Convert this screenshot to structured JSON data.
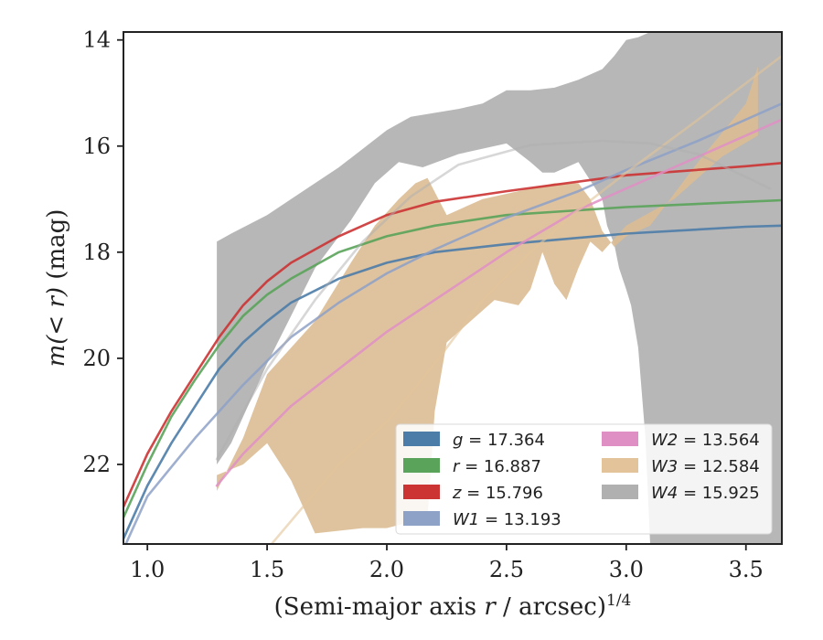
{
  "chart_data": {
    "type": "line",
    "title": "",
    "xlabel": "(Semi-major axis r / arcsec)1/4",
    "xlabel_parts": {
      "main": "(Semi-major axis ",
      "var": "r",
      "rest": " / arcsec)",
      "sup": "1/4"
    },
    "ylabel": "m(< r) (mag)",
    "ylabel_parts": {
      "main": "m(< r)",
      "unit": " (mag)"
    },
    "xlim": [
      0.9,
      3.65
    ],
    "ylim": [
      23.5,
      13.85
    ],
    "y_inverted": true,
    "xticks": [
      1.0,
      1.5,
      2.0,
      2.5,
      3.0,
      3.5
    ],
    "xtick_labels": [
      "1.0",
      "1.5",
      "2.0",
      "2.5",
      "3.0",
      "3.5"
    ],
    "yticks": [
      14,
      16,
      18,
      20,
      22
    ],
    "ytick_labels": [
      "14",
      "16",
      "18",
      "20",
      "22"
    ],
    "grid": false,
    "legend_placement": "lower-right",
    "series": [
      {
        "name": "g = 17.364",
        "var": "g",
        "val": "17.364",
        "color": "#4c7ca8",
        "alpha": 0.9,
        "x": [
          0.9,
          1.0,
          1.1,
          1.2,
          1.3,
          1.4,
          1.5,
          1.6,
          1.8,
          2.0,
          2.2,
          2.5,
          3.0,
          3.5,
          3.65
        ],
        "y": [
          23.4,
          22.4,
          21.6,
          20.9,
          20.2,
          19.7,
          19.3,
          18.95,
          18.5,
          18.2,
          18.0,
          17.85,
          17.65,
          17.52,
          17.5
        ]
      },
      {
        "name": "r = 16.887",
        "var": "r",
        "val": "16.887",
        "color": "#5aa35a",
        "alpha": 0.9,
        "x": [
          0.9,
          1.0,
          1.1,
          1.2,
          1.3,
          1.4,
          1.5,
          1.6,
          1.8,
          2.0,
          2.2,
          2.5,
          3.0,
          3.5,
          3.65
        ],
        "y": [
          23.0,
          22.0,
          21.1,
          20.4,
          19.75,
          19.2,
          18.8,
          18.5,
          18.0,
          17.7,
          17.5,
          17.3,
          17.15,
          17.05,
          17.02
        ]
      },
      {
        "name": "z = 15.796",
        "var": "z",
        "val": "15.796",
        "color": "#cc3333",
        "alpha": 0.9,
        "x": [
          0.9,
          1.0,
          1.1,
          1.2,
          1.3,
          1.4,
          1.5,
          1.6,
          1.8,
          2.0,
          2.2,
          2.5,
          3.0,
          3.5,
          3.65
        ],
        "y": [
          22.8,
          21.8,
          21.0,
          20.3,
          19.6,
          19.0,
          18.55,
          18.2,
          17.7,
          17.3,
          17.05,
          16.85,
          16.55,
          16.38,
          16.32
        ]
      },
      {
        "name": "W1 = 13.193",
        "var": "W1",
        "val": "13.193",
        "color": "#8ea1c7",
        "alpha": 0.85,
        "x": [
          0.9,
          1.0,
          1.2,
          1.4,
          1.6,
          1.8,
          2.0,
          2.2,
          2.5,
          2.8,
          3.0,
          3.3,
          3.65
        ],
        "y": [
          23.6,
          22.6,
          21.5,
          20.5,
          19.6,
          18.95,
          18.4,
          17.95,
          17.35,
          16.85,
          16.45,
          15.9,
          15.2
        ]
      },
      {
        "name": "W2 = 13.564",
        "var": "W2",
        "val": "13.564",
        "color": "#e08fc5",
        "alpha": 0.85,
        "x": [
          1.29,
          1.4,
          1.6,
          1.8,
          2.0,
          2.2,
          2.5,
          2.8,
          3.0,
          3.3,
          3.65
        ],
        "y": [
          22.4,
          21.8,
          20.9,
          20.2,
          19.5,
          18.9,
          18.0,
          17.2,
          16.8,
          16.2,
          15.5
        ]
      },
      {
        "name": "W3 = 12.584",
        "var": "W3",
        "val": "12.584",
        "color": "#e3c49a",
        "alpha": 0.6,
        "x": [
          1.5,
          1.8,
          2.0,
          2.2,
          2.4,
          2.6,
          2.8,
          3.0,
          3.3,
          3.65
        ],
        "y": [
          23.6,
          22.0,
          21.2,
          20.1,
          18.9,
          18.0,
          17.2,
          16.5,
          15.5,
          14.3
        ]
      },
      {
        "name": "W4 = 15.925",
        "var": "W4",
        "val": "15.925",
        "color": "#b0b0b0",
        "alpha": 0.5,
        "x": [
          1.29,
          1.5,
          1.7,
          1.9,
          2.1,
          2.3,
          2.6,
          2.9,
          3.1,
          3.3,
          3.6
        ],
        "y": [
          21.9,
          20.2,
          18.9,
          17.8,
          16.95,
          16.35,
          15.98,
          15.9,
          15.95,
          16.15,
          16.8
        ]
      }
    ],
    "bands": [
      {
        "series": "W4",
        "color": "#b7b7b7",
        "alpha": 1.0,
        "upper": [
          [
            1.29,
            17.8
          ],
          [
            1.35,
            17.65
          ],
          [
            1.5,
            17.3
          ],
          [
            1.6,
            17.0
          ],
          [
            1.8,
            16.4
          ],
          [
            1.9,
            16.05
          ],
          [
            2.0,
            15.7
          ],
          [
            2.1,
            15.45
          ],
          [
            2.3,
            15.3
          ],
          [
            2.4,
            15.2
          ],
          [
            2.5,
            14.95
          ],
          [
            2.6,
            14.95
          ],
          [
            2.7,
            14.9
          ],
          [
            2.8,
            14.75
          ],
          [
            2.9,
            14.55
          ],
          [
            2.95,
            14.3
          ],
          [
            3.0,
            14.0
          ],
          [
            3.05,
            13.95
          ],
          [
            3.1,
            13.85
          ],
          [
            3.65,
            13.85
          ]
        ],
        "lower": [
          [
            1.29,
            22.0
          ],
          [
            1.35,
            21.6
          ],
          [
            1.5,
            20.1
          ],
          [
            1.7,
            18.3
          ],
          [
            1.85,
            17.4
          ],
          [
            1.95,
            16.7
          ],
          [
            2.05,
            16.3
          ],
          [
            2.15,
            16.4
          ],
          [
            2.3,
            16.15
          ],
          [
            2.5,
            15.95
          ],
          [
            2.6,
            16.3
          ],
          [
            2.65,
            16.5
          ],
          [
            2.7,
            16.5
          ],
          [
            2.8,
            16.3
          ],
          [
            2.9,
            17.0
          ],
          [
            2.92,
            17.5
          ],
          [
            2.95,
            17.85
          ],
          [
            2.97,
            18.3
          ],
          [
            3.0,
            18.7
          ],
          [
            3.02,
            19.0
          ],
          [
            3.05,
            19.8
          ],
          [
            3.08,
            21.5
          ],
          [
            3.1,
            23.5
          ],
          [
            3.65,
            23.5
          ]
        ]
      },
      {
        "series": "W3",
        "color": "#dcbd93",
        "alpha": 0.9,
        "upper": [
          [
            1.29,
            22.5
          ],
          [
            1.4,
            21.5
          ],
          [
            1.5,
            20.3
          ],
          [
            1.7,
            19.3
          ],
          [
            1.85,
            18.2
          ],
          [
            1.95,
            17.5
          ],
          [
            2.05,
            17.0
          ],
          [
            2.12,
            16.7
          ],
          [
            2.17,
            16.6
          ],
          [
            2.25,
            17.3
          ],
          [
            2.4,
            17.0
          ],
          [
            2.5,
            16.9
          ],
          [
            2.7,
            16.7
          ],
          [
            2.8,
            16.7
          ],
          [
            2.85,
            17.0
          ],
          [
            2.9,
            17.6
          ],
          [
            2.95,
            17.9
          ],
          [
            3.0,
            17.7
          ],
          [
            3.1,
            17.5
          ],
          [
            3.3,
            16.3
          ],
          [
            3.5,
            15.2
          ],
          [
            3.55,
            14.5
          ]
        ],
        "lower": [
          [
            1.29,
            22.2
          ],
          [
            1.4,
            22.0
          ],
          [
            1.5,
            21.6
          ],
          [
            1.6,
            22.3
          ],
          [
            1.7,
            23.3
          ],
          [
            1.9,
            23.2
          ],
          [
            2.0,
            23.2
          ],
          [
            2.17,
            23.0
          ],
          [
            2.2,
            21.0
          ],
          [
            2.25,
            19.7
          ],
          [
            2.35,
            19.3
          ],
          [
            2.45,
            18.9
          ],
          [
            2.55,
            19.0
          ],
          [
            2.6,
            18.7
          ],
          [
            2.65,
            18.0
          ],
          [
            2.7,
            18.6
          ],
          [
            2.75,
            18.9
          ],
          [
            2.8,
            18.3
          ],
          [
            2.85,
            17.8
          ],
          [
            2.9,
            18.0
          ],
          [
            3.0,
            17.5
          ],
          [
            3.2,
            17.0
          ],
          [
            3.4,
            16.2
          ],
          [
            3.55,
            15.8
          ]
        ]
      }
    ]
  }
}
